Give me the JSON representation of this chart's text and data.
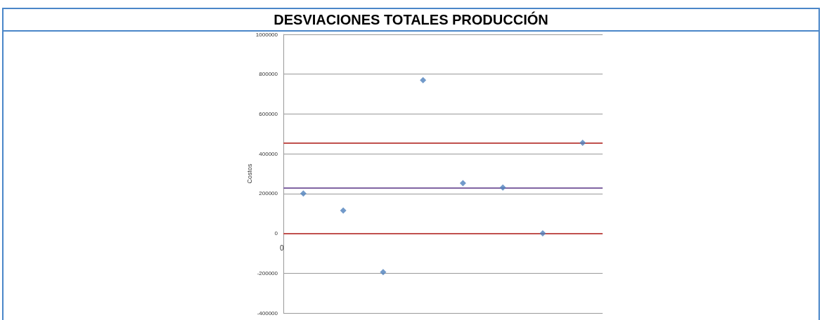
{
  "chart_data": {
    "type": "scatter",
    "title": "DESVIACIONES TOTALES PRODUCCIÓN",
    "ylabel": "Costos",
    "categories": [
      null,
      null,
      null,
      null,
      null,
      null,
      null,
      null
    ],
    "annotations": [
      "0"
    ],
    "values": [
      200000,
      115000,
      -195000,
      770000,
      252000,
      230000,
      0,
      455000
    ],
    "color": "#4f81bd",
    "marker": "diamond",
    "ylim": [
      -400000,
      1000000
    ],
    "yticks": [
      -400000,
      -200000,
      0,
      200000,
      400000,
      600000,
      800000,
      1000000
    ],
    "grid": "y",
    "ref_lines": [
      {
        "axis": "y",
        "value": 455000,
        "label": null,
        "color": "#c0504d"
      },
      {
        "axis": "y",
        "value": 228000,
        "label": null,
        "color": "#8064a2"
      },
      {
        "axis": "y",
        "value": 0,
        "label": null,
        "color": "#c0504d"
      }
    ]
  }
}
